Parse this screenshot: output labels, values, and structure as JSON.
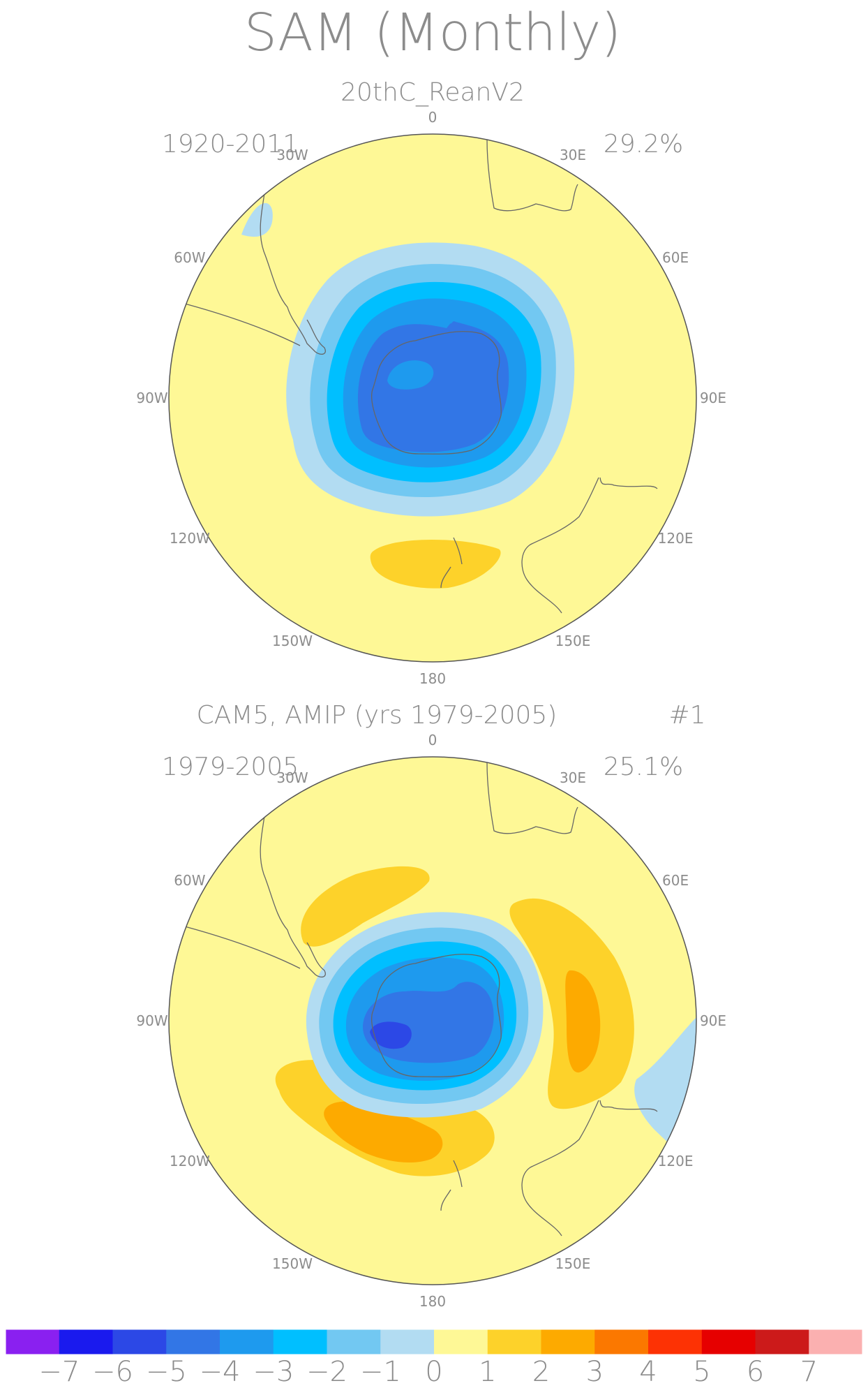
{
  "title": "SAM (Monthly)",
  "maps": [
    {
      "subtitle": "20thC_ReanV2",
      "run_tag": "",
      "years": "1920-2011",
      "variance_explained": "29.2%"
    },
    {
      "subtitle": "CAM5, AMIP (yrs 1979-2005)",
      "run_tag": "#1",
      "years": "1979-2005",
      "variance_explained": "25.1%"
    }
  ],
  "longitude_labels": [
    "0",
    "30E",
    "60E",
    "90E",
    "120E",
    "150E",
    "180",
    "150W",
    "120W",
    "90W",
    "60W",
    "30W"
  ],
  "colorbar": {
    "colors": [
      "#8a20f0",
      "#1a1aee",
      "#2c48e6",
      "#3276e6",
      "#1e9aee",
      "#00bfff",
      "#72c8f2",
      "#b2dcf2",
      "#fef896",
      "#fdd22a",
      "#fdaa00",
      "#fb7800",
      "#fd3204",
      "#e60000",
      "#cc1a1a",
      "#fbb0b0"
    ],
    "tick_labels": [
      "-7",
      "-6",
      "-5",
      "-4",
      "-3",
      "-2",
      "-1",
      "0",
      "1",
      "2",
      "3",
      "4",
      "5",
      "6",
      "7"
    ]
  },
  "icons": {
    "basemap": "south-polar-stereographic"
  }
}
